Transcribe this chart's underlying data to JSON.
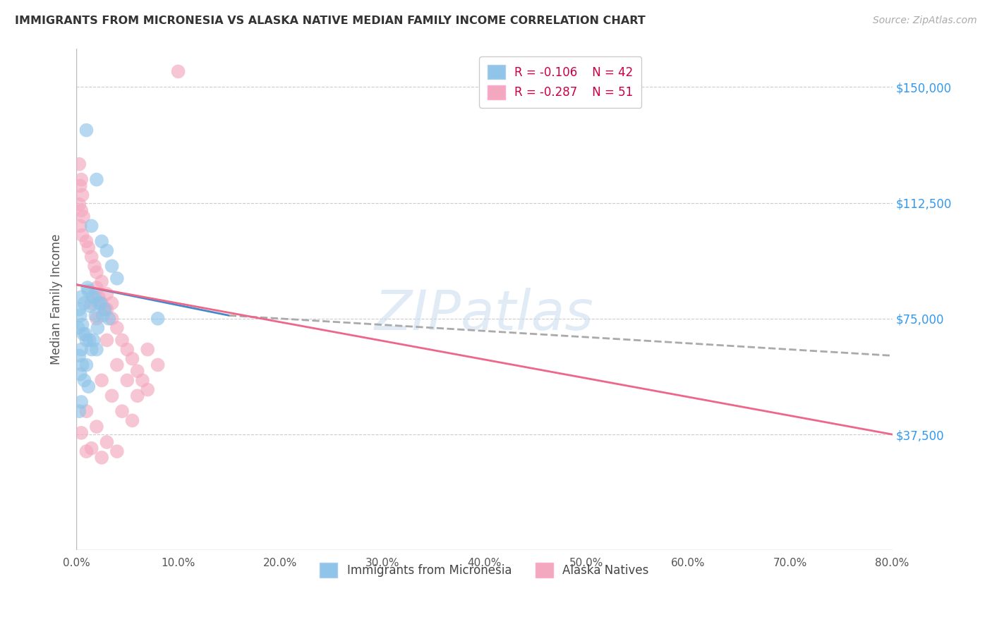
{
  "title": "IMMIGRANTS FROM MICRONESIA VS ALASKA NATIVE MEDIAN FAMILY INCOME CORRELATION CHART",
  "source": "Source: ZipAtlas.com",
  "ylabel": "Median Family Income",
  "yticks": [
    37500,
    75000,
    112500,
    150000
  ],
  "ytick_labels": [
    "$37,500",
    "$75,000",
    "$112,500",
    "$150,000"
  ],
  "legend_blue_r": "R = -0.106",
  "legend_blue_n": "N = 42",
  "legend_pink_r": "R = -0.287",
  "legend_pink_n": "N = 51",
  "legend_label_blue": "Immigrants from Micronesia",
  "legend_label_pink": "Alaska Natives",
  "watermark": "ZIPatlas",
  "blue_color": "#90c4e8",
  "pink_color": "#f4a8bf",
  "blue_line_color": "#4488cc",
  "pink_line_color": "#ee6688",
  "gray_dash_color": "#aaaaaa",
  "blue_scatter": [
    [
      0.5,
      82000
    ],
    [
      1.0,
      136000
    ],
    [
      2.0,
      120000
    ],
    [
      1.5,
      105000
    ],
    [
      2.5,
      100000
    ],
    [
      3.0,
      97000
    ],
    [
      3.5,
      92000
    ],
    [
      4.0,
      88000
    ],
    [
      0.3,
      78000
    ],
    [
      1.2,
      84000
    ],
    [
      1.8,
      82000
    ],
    [
      2.2,
      80000
    ],
    [
      2.8,
      78000
    ],
    [
      3.2,
      75000
    ],
    [
      0.4,
      76000
    ],
    [
      0.8,
      80000
    ],
    [
      1.1,
      85000
    ],
    [
      1.4,
      79000
    ],
    [
      1.6,
      82000
    ],
    [
      1.9,
      76000
    ],
    [
      2.1,
      72000
    ],
    [
      2.4,
      80000
    ],
    [
      2.6,
      76000
    ],
    [
      0.6,
      73000
    ],
    [
      0.9,
      70000
    ],
    [
      1.3,
      68000
    ],
    [
      0.5,
      65000
    ],
    [
      0.7,
      70000
    ],
    [
      1.0,
      68000
    ],
    [
      1.5,
      65000
    ],
    [
      0.3,
      63000
    ],
    [
      0.6,
      60000
    ],
    [
      0.4,
      57000
    ],
    [
      0.8,
      55000
    ],
    [
      1.2,
      53000
    ],
    [
      1.7,
      68000
    ],
    [
      2.0,
      65000
    ],
    [
      0.2,
      72000
    ],
    [
      0.5,
      48000
    ],
    [
      0.3,
      45000
    ],
    [
      1.0,
      60000
    ],
    [
      8.0,
      75000
    ]
  ],
  "pink_scatter": [
    [
      0.3,
      125000
    ],
    [
      0.5,
      120000
    ],
    [
      0.4,
      118000
    ],
    [
      0.6,
      115000
    ],
    [
      0.3,
      112000
    ],
    [
      0.5,
      110000
    ],
    [
      0.7,
      108000
    ],
    [
      0.4,
      105000
    ],
    [
      0.6,
      102000
    ],
    [
      1.0,
      100000
    ],
    [
      1.2,
      98000
    ],
    [
      1.5,
      95000
    ],
    [
      1.8,
      92000
    ],
    [
      2.0,
      90000
    ],
    [
      2.5,
      87000
    ],
    [
      3.0,
      83000
    ],
    [
      3.5,
      80000
    ],
    [
      2.0,
      85000
    ],
    [
      2.5,
      80000
    ],
    [
      3.0,
      78000
    ],
    [
      2.2,
      82000
    ],
    [
      2.8,
      78000
    ],
    [
      3.5,
      75000
    ],
    [
      4.0,
      72000
    ],
    [
      4.5,
      68000
    ],
    [
      5.0,
      65000
    ],
    [
      5.5,
      62000
    ],
    [
      6.0,
      58000
    ],
    [
      6.5,
      55000
    ],
    [
      7.0,
      52000
    ],
    [
      1.5,
      80000
    ],
    [
      2.0,
      75000
    ],
    [
      3.0,
      68000
    ],
    [
      4.0,
      60000
    ],
    [
      5.0,
      55000
    ],
    [
      6.0,
      50000
    ],
    [
      2.5,
      55000
    ],
    [
      3.5,
      50000
    ],
    [
      4.5,
      45000
    ],
    [
      5.5,
      42000
    ],
    [
      1.0,
      45000
    ],
    [
      2.0,
      40000
    ],
    [
      3.0,
      35000
    ],
    [
      4.0,
      32000
    ],
    [
      1.5,
      33000
    ],
    [
      2.5,
      30000
    ],
    [
      0.5,
      38000
    ],
    [
      1.0,
      32000
    ],
    [
      10.0,
      155000
    ],
    [
      7.0,
      65000
    ],
    [
      8.0,
      60000
    ]
  ],
  "xmin": 0.0,
  "xmax": 80.0,
  "ymin": 0,
  "ymax": 162500,
  "xtick_positions": [
    0,
    10,
    20,
    30,
    40,
    50,
    60,
    70,
    80
  ],
  "xtick_labels": [
    "0.0%",
    "10.0%",
    "20.0%",
    "30.0%",
    "40.0%",
    "50.0%",
    "60.0%",
    "70.0%",
    "80.0%"
  ],
  "blue_line_x0": 0,
  "blue_line_y0": 86000,
  "blue_line_x1": 15,
  "blue_line_y1": 76000,
  "blue_dash_x0": 15,
  "blue_dash_y0": 76000,
  "blue_dash_x1": 80,
  "blue_dash_y1": 63000,
  "pink_line_x0": 0,
  "pink_line_y0": 86000,
  "pink_line_x1": 80,
  "pink_line_y1": 37500,
  "grid_color": "#cccccc",
  "bg_color": "#ffffff"
}
